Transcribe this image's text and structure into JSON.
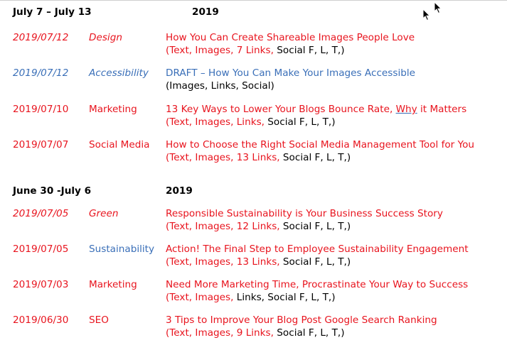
{
  "weeks": [
    {
      "label": "July 7 – July 13",
      "year": "2019",
      "entries": [
        {
          "date": "2019/07/12",
          "category": "Design",
          "title": "How You Can Create Shareable Images People Love",
          "meta_red": "(Text, Images, 7 Links,",
          "meta_black": " Social F, L, T,)",
          "style": "red-italic"
        },
        {
          "date": "2019/07/12",
          "category": "Accessibility",
          "title": "DRAFT – How You Can Make Your Images Accessible",
          "meta_red": "",
          "meta_black": "(Images, Links, Social)",
          "style": "blue-italic"
        },
        {
          "date": "2019/07/10",
          "category": "Marketing",
          "title_before": "13 Key Ways to Lower Your Blogs Bounce Rate, ",
          "title_underlined": "Why",
          "title_after": " it Matters",
          "meta_red": "(Text, Images, Links,",
          "meta_black": " Social F, L, T,)",
          "style": "red"
        },
        {
          "date": "2019/07/07",
          "category": "Social Media",
          "title": "How to Choose the Right Social Media Management Tool for You",
          "meta_red": "(Text, Images, 13 Links,",
          "meta_black": " Social F, L, T,)",
          "style": "red"
        }
      ]
    },
    {
      "label": "June 30 -July 6",
      "year": "2019",
      "entries": [
        {
          "date": "2019/07/05",
          "category": "Green",
          "title": "Responsible Sustainability is Your Business Success Story",
          "meta_red": "(Text, Images, 12 Links,",
          "meta_black": " Social F, L, T,)",
          "style": "red-italic"
        },
        {
          "date": "2019/07/05",
          "category": "Sustainability",
          "title": "Action! The Final Step to Employee Sustainability Engagement",
          "meta_red": "(Text, Images, 13 Links,",
          "meta_black": " Social F, L, T,)",
          "style": "red-bluecat"
        },
        {
          "date": "2019/07/03",
          "category": "Marketing",
          "title": "Need More Marketing Time, Procrastinate Your Way to Success",
          "meta_red": "(Text, Images,",
          "meta_black": " Links, Social F, L, T,)",
          "style": "red"
        },
        {
          "date": "2019/06/30",
          "category": "SEO",
          "title": "3 Tips to Improve Your Blog Post Google Search Ranking",
          "meta_red": "(Text, Images, 9 Links,",
          "meta_black": " Social F, L, T,)",
          "style": "red"
        }
      ]
    }
  ],
  "icons": {
    "cursor_a": "mouse-pointer-icon",
    "cursor_b": "mouse-pointer-icon"
  }
}
